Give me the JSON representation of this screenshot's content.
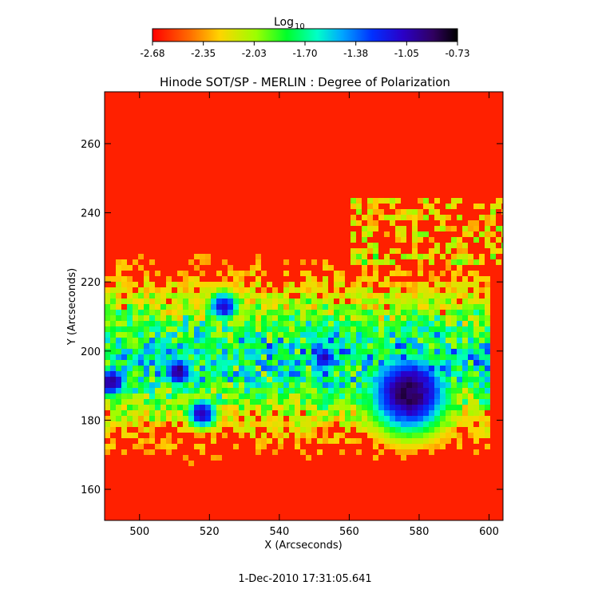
{
  "chart_data": {
    "type": "heatmap",
    "title": "Hinode SOT/SP - MERLIN : Degree of Polarization",
    "xlabel": "X (Arcseconds)",
    "ylabel": "Y (Arcseconds)",
    "xlim": [
      490,
      604
    ],
    "ylim": [
      151,
      275
    ],
    "x_ticks": [
      500,
      520,
      540,
      560,
      580,
      600
    ],
    "y_ticks": [
      160,
      180,
      200,
      220,
      240,
      260
    ],
    "colorbar": {
      "label": "Log",
      "label_subscript": "10",
      "range": [
        -2.68,
        -0.73
      ],
      "ticks": [
        "-2.68",
        "-2.35",
        "-2.03",
        "-1.70",
        "-1.38",
        "-1.05",
        "-0.73"
      ],
      "colormap": "rainbow (red low → violet/black high)"
    },
    "features": [
      {
        "kind": "sunspot",
        "x": 577,
        "y": 188,
        "level": -0.85
      },
      {
        "kind": "pore",
        "x": 511,
        "y": 194,
        "level": -0.95
      },
      {
        "kind": "pore",
        "x": 492,
        "y": 191,
        "level": -0.95
      },
      {
        "kind": "pore",
        "x": 518,
        "y": 182,
        "level": -1.05
      },
      {
        "kind": "pore",
        "x": 524,
        "y": 213,
        "level": -1.1
      },
      {
        "kind": "pore",
        "x": 553,
        "y": 198,
        "level": -1.1
      }
    ],
    "background_level": -2.6
  },
  "footer": {
    "timestamp": "1-Dec-2010 17:31:05.641"
  }
}
